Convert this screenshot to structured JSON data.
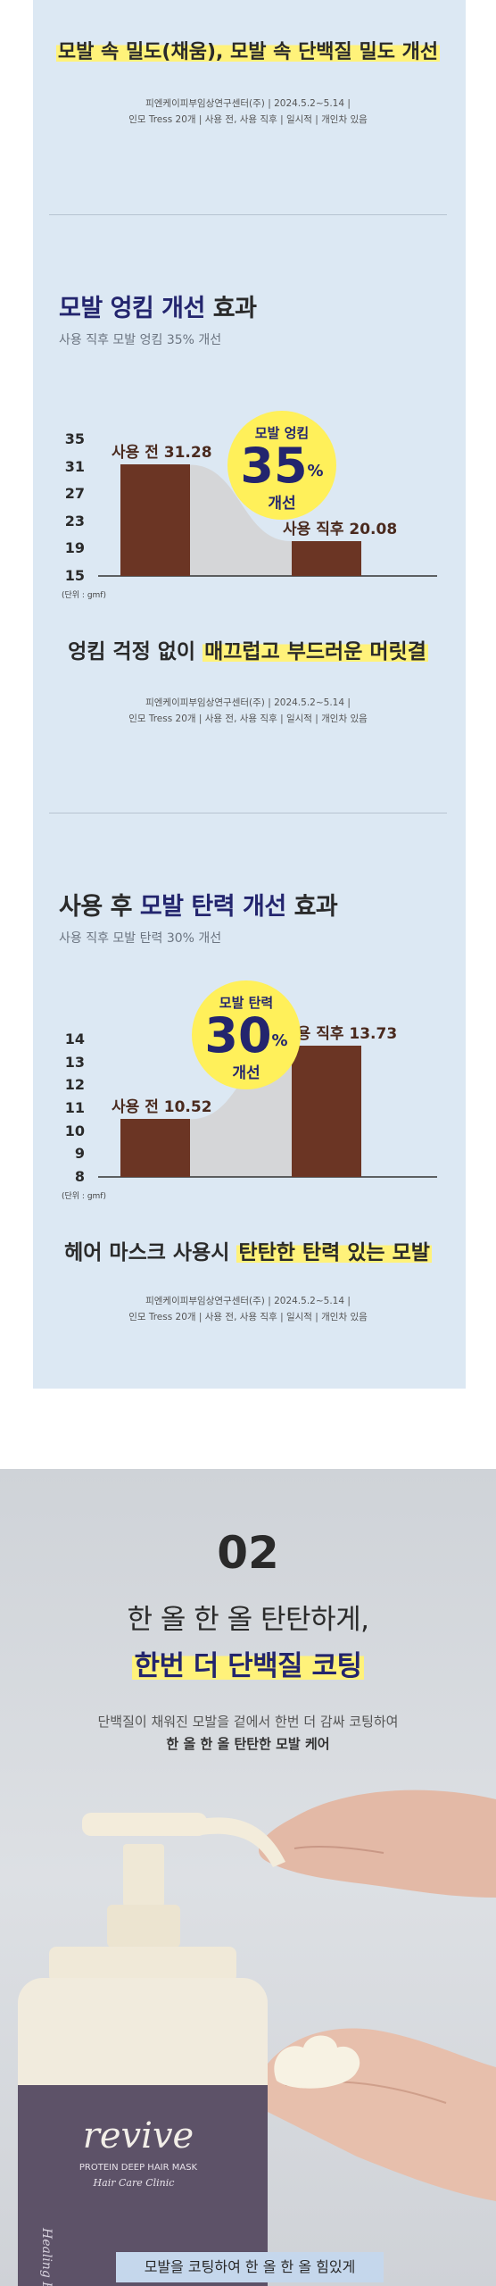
{
  "top_caption": "모발 속 밀도(채움), 모발 속 단백질 밀도 개선",
  "note1": {
    "line1": "피엔케이피부임상연구센터(주) | 2024.5.2~5.14 |",
    "line2": "인모 Tress 20개 | 사용 전, 사용 직후 | 일시적 | 개인차 있음"
  },
  "section1": {
    "title_a": "모발 엉킴 개선",
    "title_b": " 효과",
    "subtitle": "사용 직후 모발 엉킴 35% 개선",
    "unit": "(단위 : gmf)",
    "badge": {
      "top": "모발 엉킴",
      "value": "35",
      "percent": "%",
      "bottom": "개선"
    },
    "caption_a": "엉킴 걱정 없이 ",
    "caption_b": "매끄럽고 부드러운 머릿결",
    "note": {
      "line1": "피엔케이피부임상연구센터(주) | 2024.5.2~5.14 |",
      "line2": "인모 Tress 20개 | 사용 전, 사용 직후 | 일시적 | 개인차 있음"
    },
    "chart_data": {
      "type": "bar",
      "categories": [
        "사용 전",
        "사용 직후"
      ],
      "values": [
        31.28,
        20.08
      ],
      "labels": [
        "사용 전 31.28",
        "사용 직후 20.08"
      ],
      "yticks": [
        "35",
        "31",
        "27",
        "23",
        "19",
        "15"
      ],
      "ylim": [
        15,
        35
      ],
      "ylabel": "(단위 : gmf)",
      "bar_color": "#6b3524",
      "area_color": "#d5d6d8"
    }
  },
  "section2": {
    "title_a": "사용 후 ",
    "title_b": "모발 탄력 개선",
    "title_c": " 효과",
    "subtitle": "사용 직후 모발 탄력 30% 개선",
    "unit": "(단위 : gmf)",
    "badge": {
      "top": "모발 탄력",
      "value": "30",
      "percent": "%",
      "bottom": "개선"
    },
    "caption_a": "헤어 마스크 사용시 ",
    "caption_b": "탄탄한 탄력 있는 모발",
    "note": {
      "line1": "피엔케이피부임상연구센터(주) | 2024.5.2~5.14 |",
      "line2": "인모 Tress 20개 | 사용 전, 사용 직후 | 일시적 | 개인차 있음"
    },
    "chart_data": {
      "type": "bar",
      "categories": [
        "사용 전",
        "사용 직후"
      ],
      "values": [
        10.52,
        13.73
      ],
      "labels": [
        "사용 전 10.52",
        "사용 직후 13.73"
      ],
      "yticks": [
        "14",
        "13",
        "12",
        "11",
        "10",
        "9",
        "8"
      ],
      "ylim": [
        8,
        14
      ],
      "ylabel": "(단위 : gmf)",
      "bar_color": "#6b3524",
      "area_color": "#d5d6d8"
    }
  },
  "product": {
    "number": "02",
    "heading1": "한 올 한 올 탄탄하게,",
    "heading2": "한번 더 단백질 코팅",
    "desc1": "단백질이 채워진 모발을 겉에서 한번 더 감싸 코팅하여",
    "desc2": "한 올 한 올 탄탄한 모발 케어",
    "jar_brand": "revive",
    "jar_line1": "PROTEIN DEEP HAIR MASK",
    "jar_line2": "Hair Care Clinic",
    "jar_side": "Healing Bird",
    "bottom_banner": "모발을 코팅하여 한 올 한 올 힘있게"
  }
}
